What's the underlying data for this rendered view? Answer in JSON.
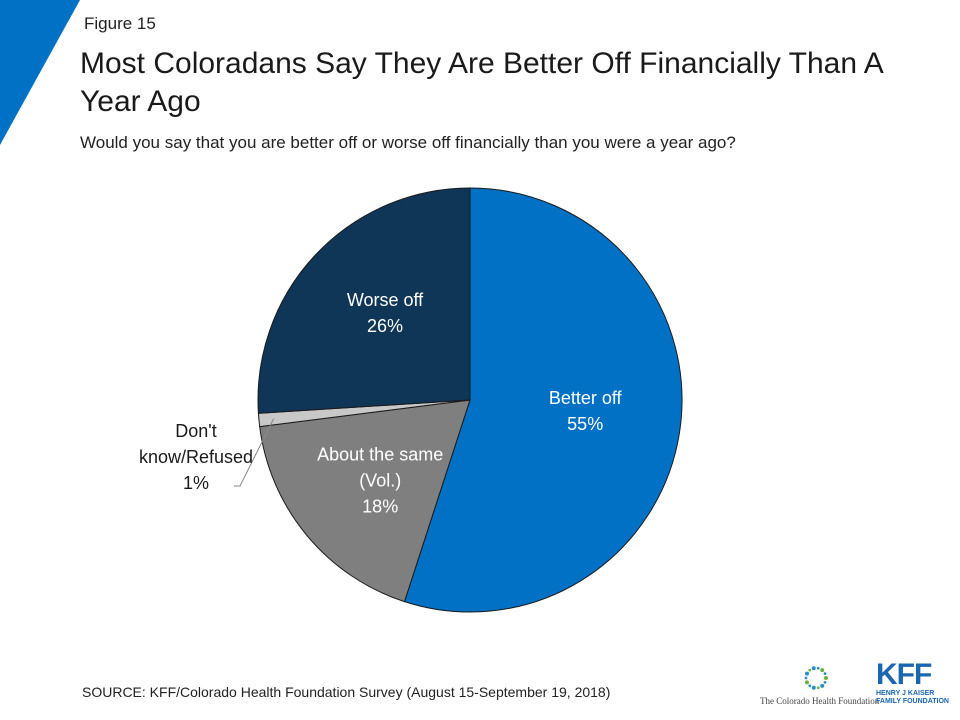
{
  "figure_label": "Figure 15",
  "source": "SOURCE: KFF/Colorado Health Foundation Survey (August 15-September 19, 2018)",
  "logos": {
    "chf": "The Colorado Health Foundation",
    "kff": "KFF",
    "kff_sub_1": "HENRY J KAISER",
    "kff_sub_2": "FAMILY FOUNDATION"
  },
  "colors": {
    "accent": "#0071c5",
    "better": "#0071c5",
    "worse": "#0f3557",
    "same": "#7f7f7f",
    "dk": "#c8c8c8"
  },
  "chart_data": {
    "type": "pie",
    "title": "Most Coloradans Say They Are Better Off Financially Than A Year Ago",
    "subtitle": "Would you say that you are better off or worse off financially than you were a year ago?",
    "slices": [
      {
        "name": "Better off",
        "value": 55,
        "label": "55%",
        "color": "#0071c5"
      },
      {
        "name": "About the same (Vol.)",
        "value": 18,
        "label": "18%",
        "color": "#7f7f7f"
      },
      {
        "name": "Don't know/Refused",
        "value": 1,
        "label": "1%",
        "color": "#c8c8c8"
      },
      {
        "name": "Worse off",
        "value": 26,
        "label": "26%",
        "color": "#0f3557"
      }
    ]
  }
}
